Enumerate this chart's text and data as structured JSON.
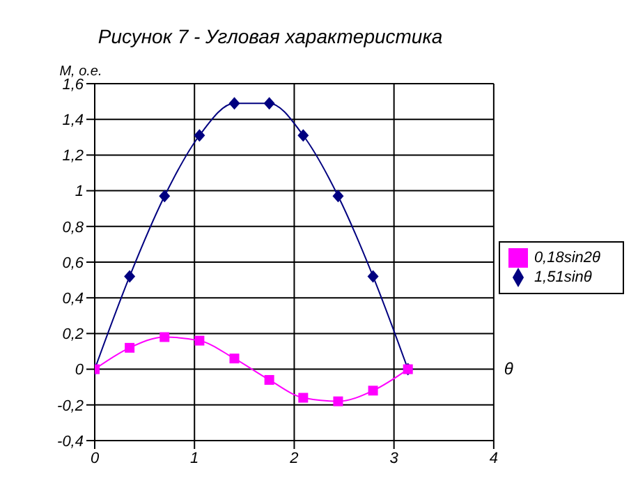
{
  "chart_data": {
    "type": "line",
    "title": "Рисунок 7 - Угловая характеристика",
    "xlabel": "θ",
    "ylabel": "М, о.е.",
    "x": [
      0,
      0.35,
      0.7,
      1.05,
      1.4,
      1.75,
      2.09,
      2.44,
      2.79,
      3.14
    ],
    "series": [
      {
        "name": "1,51sinθ",
        "color": "#000080",
        "marker": "diamond",
        "values": [
          0,
          0.52,
          0.97,
          1.31,
          1.49,
          1.49,
          1.31,
          0.97,
          0.52,
          0
        ]
      },
      {
        "name": "0,18sin2θ",
        "color": "#ff00ff",
        "marker": "square",
        "values": [
          0,
          0.12,
          0.18,
          0.16,
          0.06,
          -0.06,
          -0.16,
          -0.18,
          -0.12,
          0
        ]
      }
    ],
    "xlim": [
      0,
      4
    ],
    "xticks": [
      0,
      1,
      2,
      3,
      4
    ],
    "ylim": [
      -0.4,
      1.6
    ],
    "yticks": [
      {
        "value": -0.4,
        "label": "-0,4"
      },
      {
        "value": -0.2,
        "label": "-0,2"
      },
      0,
      {
        "value": 0.2,
        "label": "0,2"
      },
      {
        "value": 0.4,
        "label": "0,4"
      },
      {
        "value": 0.6,
        "label": "0,6"
      },
      {
        "value": 0.8,
        "label": "0,8"
      },
      1,
      {
        "value": 1.2,
        "label": "1,2"
      },
      {
        "value": 1.4,
        "label": "1,4"
      },
      {
        "value": 1.6,
        "label": "1,6"
      }
    ],
    "grid": true,
    "legend": "right"
  }
}
